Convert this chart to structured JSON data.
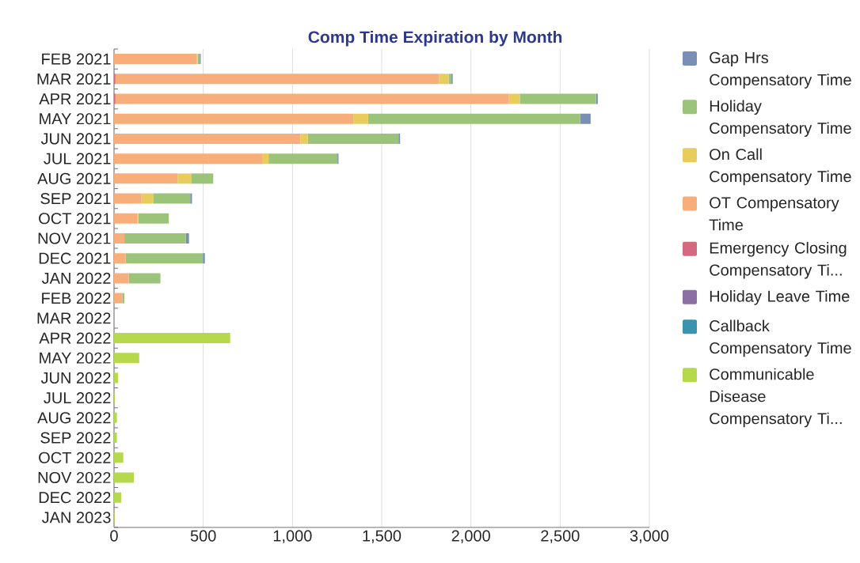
{
  "chart_data": {
    "type": "bar",
    "orientation": "horizontal",
    "stacked": true,
    "title": "Comp Time Expiration by Month",
    "categories": [
      "FEB 2021",
      "MAR 2021",
      "APR 2021",
      "MAY 2021",
      "JUN 2021",
      "JUL 2021",
      "AUG 2021",
      "SEP 2021",
      "OCT 2021",
      "NOV 2021",
      "DEC 2021",
      "JAN 2022",
      "FEB 2022",
      "MAR 2022",
      "APR 2022",
      "MAY 2022",
      "JUN 2022",
      "JUL 2022",
      "AUG 2022",
      "SEP 2022",
      "OCT 2022",
      "NOV 2022",
      "DEC 2022",
      "JAN 2023"
    ],
    "series": [
      {
        "name": "Communicable Disease Compensatory Ti...",
        "color": "#b6d94b",
        "values": [
          null,
          null,
          null,
          null,
          null,
          null,
          null,
          null,
          null,
          null,
          null,
          null,
          null,
          null,
          651,
          141,
          22,
          4,
          16,
          16,
          52,
          111,
          40,
          3
        ]
      },
      {
        "name": "Callback Compensatory Time",
        "color": "#3a94b0",
        "values": [
          null,
          null,
          null,
          null,
          null,
          null,
          null,
          null,
          null,
          null,
          null,
          null,
          null,
          null,
          null,
          null,
          null,
          null,
          null,
          null,
          null,
          null,
          null,
          null
        ]
      },
      {
        "name": "Holiday Leave Time",
        "color": "#8d70a3",
        "values": [
          null,
          null,
          null,
          null,
          null,
          null,
          null,
          null,
          null,
          null,
          null,
          null,
          null,
          null,
          null,
          null,
          null,
          null,
          null,
          null,
          null,
          null,
          null,
          null
        ]
      },
      {
        "name": "Emergency Closing Compensatory Ti...",
        "color": "#d46a7e",
        "values": [
          null,
          8,
          8,
          null,
          null,
          null,
          null,
          null,
          null,
          null,
          null,
          null,
          null,
          null,
          null,
          null,
          null,
          null,
          null,
          null,
          null,
          null,
          null,
          null
        ]
      },
      {
        "name": "OT Compensatory Time",
        "color": "#f8ae7a",
        "values": [
          464,
          1813,
          2205,
          1341,
          1044,
          830,
          356,
          154,
          132,
          58,
          65,
          82,
          46,
          null,
          null,
          null,
          null,
          null,
          null,
          null,
          null,
          null,
          null,
          null
        ]
      },
      {
        "name": "On Call Compensatory Time",
        "color": "#e8cd5c",
        "values": [
          5,
          54,
          61,
          83,
          42,
          36,
          76,
          65,
          4,
          null,
          null,
          null,
          null,
          null,
          null,
          null,
          null,
          null,
          null,
          null,
          null,
          null,
          null,
          null
        ]
      },
      {
        "name": "Holiday Compensatory Time",
        "color": "#9bc47a",
        "values": [
          11,
          16,
          427,
          1188,
          508,
          386,
          124,
          208,
          171,
          344,
          433,
          178,
          12,
          null,
          null,
          null,
          null,
          null,
          null,
          null,
          null,
          null,
          null,
          null
        ]
      },
      {
        "name": "Gap Hrs Compensatory Time",
        "color": "#7a8fb5",
        "values": [
          6,
          7,
          10,
          59,
          9,
          6,
          null,
          10,
          null,
          18,
          11,
          null,
          null,
          null,
          null,
          null,
          null,
          null,
          null,
          null,
          null,
          null,
          null,
          null
        ]
      }
    ],
    "xlim": [
      0,
      3000
    ],
    "xticks": [
      0,
      500,
      {
        "value": 1000,
        "label": "1,000"
      },
      {
        "value": 1500,
        "label": "1,500"
      },
      {
        "value": 2000,
        "label": "2,000"
      },
      {
        "value": 2500,
        "label": "2,500"
      },
      {
        "value": 3000,
        "label": "3,000"
      }
    ],
    "grid": "x",
    "legend": "right"
  }
}
